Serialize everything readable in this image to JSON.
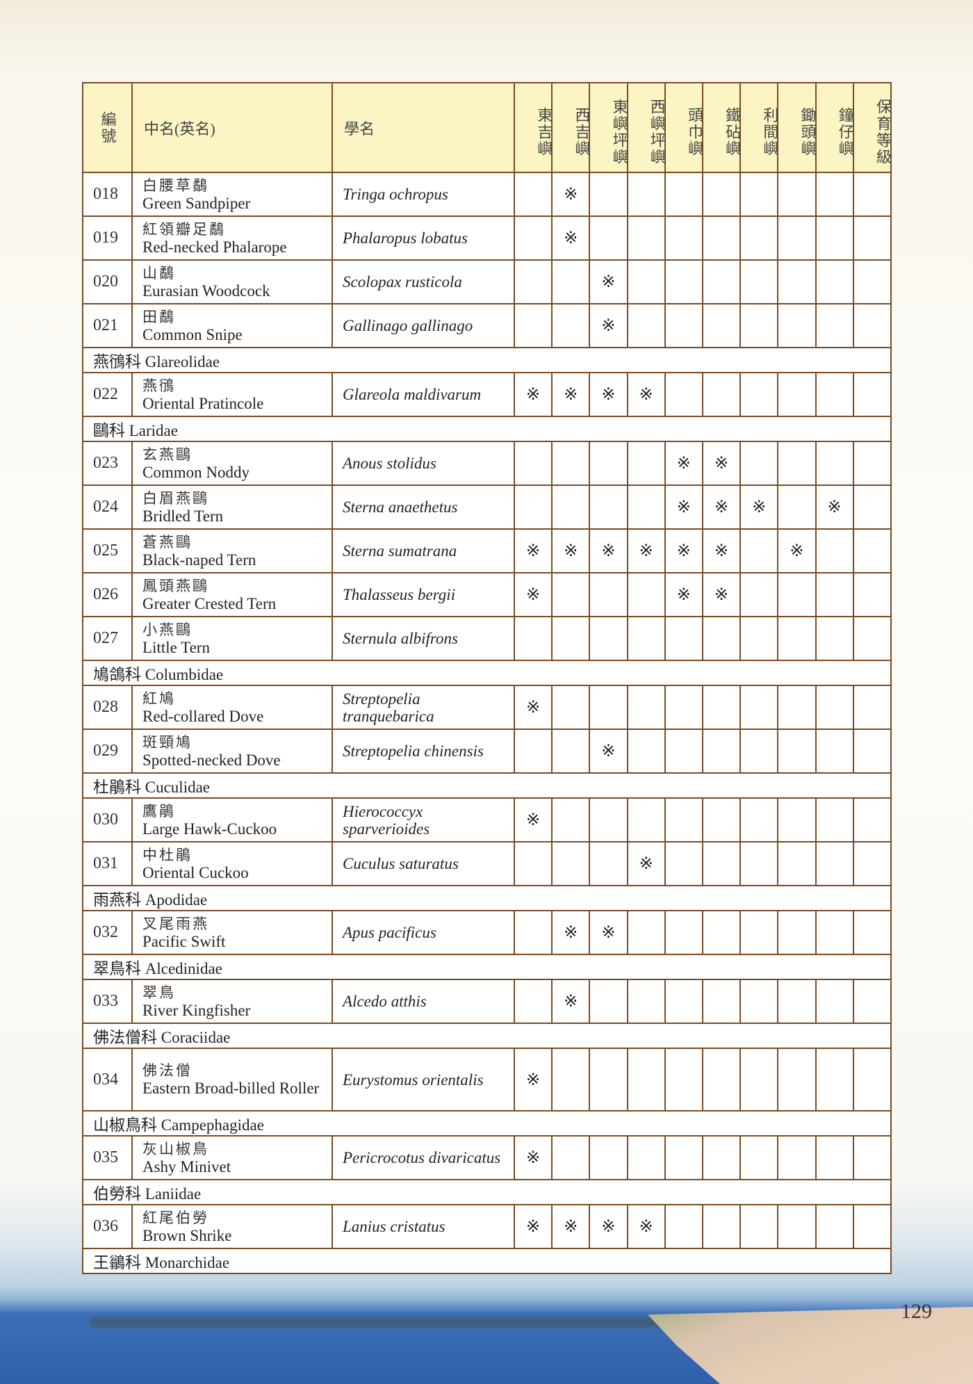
{
  "header": {
    "no": "編號",
    "name": "中名(英名)",
    "sci": "學名",
    "islands": [
      "東吉嶼",
      "西吉嶼",
      "東嶼坪嶼",
      "西嶼坪嶼",
      "頭巾嶼",
      "鐵砧嶼",
      "利間嶼",
      "鋤頭嶼",
      "鐘仔嶼"
    ],
    "conservation": "保育等級"
  },
  "mark_symbol": "※",
  "rows": [
    {
      "type": "species",
      "no": "018",
      "zh": "白腰草鷸",
      "en": "Green Sandpiper",
      "sci": "Tringa ochropus",
      "marks": [
        2
      ]
    },
    {
      "type": "species",
      "no": "019",
      "zh": "紅領瓣足鷸",
      "en": "Red-necked Phalarope",
      "sci": "Phalaropus lobatus",
      "marks": [
        2
      ]
    },
    {
      "type": "species",
      "no": "020",
      "zh": "山鷸",
      "en": "Eurasian Woodcock",
      "sci": "Scolopax rusticola",
      "marks": [
        3
      ]
    },
    {
      "type": "species",
      "no": "021",
      "zh": "田鷸",
      "en": "Common Snipe",
      "sci": "Gallinago gallinago",
      "marks": [
        3
      ]
    },
    {
      "type": "family",
      "label": "燕鴴科 Glareolidae"
    },
    {
      "type": "species",
      "no": "022",
      "zh": "燕鴴",
      "en": "Oriental Pratincole",
      "sci": "Glareola maldivarum",
      "marks": [
        1,
        2,
        3,
        4
      ]
    },
    {
      "type": "family",
      "label": "鷗科 Laridae"
    },
    {
      "type": "species",
      "no": "023",
      "zh": "玄燕鷗",
      "en": "Common Noddy",
      "sci": "Anous stolidus",
      "marks": [
        5,
        6
      ]
    },
    {
      "type": "species",
      "no": "024",
      "zh": "白眉燕鷗",
      "en": "Bridled Tern",
      "sci": "Sterna anaethetus",
      "marks": [
        5,
        6,
        7,
        9
      ]
    },
    {
      "type": "species",
      "no": "025",
      "zh": "蒼燕鷗",
      "en": "Black-naped Tern",
      "sci": "Sterna sumatrana",
      "marks": [
        1,
        2,
        3,
        4,
        5,
        6,
        8
      ]
    },
    {
      "type": "species",
      "no": "026",
      "zh": "鳳頭燕鷗",
      "en": "Greater Crested Tern",
      "sci": "Thalasseus bergii",
      "marks": [
        1,
        5,
        6
      ]
    },
    {
      "type": "species",
      "no": "027",
      "zh": "小燕鷗",
      "en": "Little Tern",
      "sci": "Sternula albifrons",
      "marks": []
    },
    {
      "type": "family",
      "label": "鳩鴿科 Columbidae"
    },
    {
      "type": "species",
      "no": "028",
      "zh": "紅鳩",
      "en": "Red-collared Dove",
      "sci": "Streptopelia tranquebarica",
      "marks": [
        1
      ]
    },
    {
      "type": "species",
      "no": "029",
      "zh": "斑頸鳩",
      "en": "Spotted-necked Dove",
      "sci": "Streptopelia chinensis",
      "marks": [
        3
      ]
    },
    {
      "type": "family",
      "label": "杜鵑科 Cuculidae"
    },
    {
      "type": "species",
      "no": "030",
      "zh": "鷹鵑",
      "en": "Large Hawk-Cuckoo",
      "sci": "Hierococcyx sparverioides",
      "marks": [
        1
      ]
    },
    {
      "type": "species",
      "no": "031",
      "zh": "中杜鵑",
      "en": "Oriental Cuckoo",
      "sci": "Cuculus saturatus",
      "marks": [
        4
      ]
    },
    {
      "type": "family",
      "label": "雨燕科 Apodidae"
    },
    {
      "type": "species",
      "no": "032",
      "zh": "叉尾雨燕",
      "en": "Pacific Swift",
      "sci": "Apus pacificus",
      "marks": [
        2,
        3
      ]
    },
    {
      "type": "family",
      "label": "翠鳥科 Alcedinidae"
    },
    {
      "type": "species",
      "no": "033",
      "zh": "翠鳥",
      "en": "River Kingfisher",
      "sci": "Alcedo atthis",
      "marks": [
        2
      ]
    },
    {
      "type": "family",
      "label": "佛法僧科 Coraciidae"
    },
    {
      "type": "species",
      "no": "034",
      "zh": "佛法僧",
      "en": "Eastern Broad-billed Roller",
      "sci": "Eurystomus orientalis",
      "marks": [
        1
      ],
      "tall": true
    },
    {
      "type": "family",
      "label": "山椒鳥科 Campephagidae"
    },
    {
      "type": "species",
      "no": "035",
      "zh": "灰山椒鳥",
      "en": "Ashy Minivet",
      "sci": "Pericrocotus divaricatus",
      "marks": [
        1
      ]
    },
    {
      "type": "family",
      "label": "伯勞科 Laniidae"
    },
    {
      "type": "species",
      "no": "036",
      "zh": "紅尾伯勞",
      "en": "Brown Shrike",
      "sci": "Lanius cristatus",
      "marks": [
        1,
        2,
        3,
        4
      ]
    },
    {
      "type": "family",
      "label": "王鶲科 Monarchidae"
    }
  ],
  "page_number": "129"
}
